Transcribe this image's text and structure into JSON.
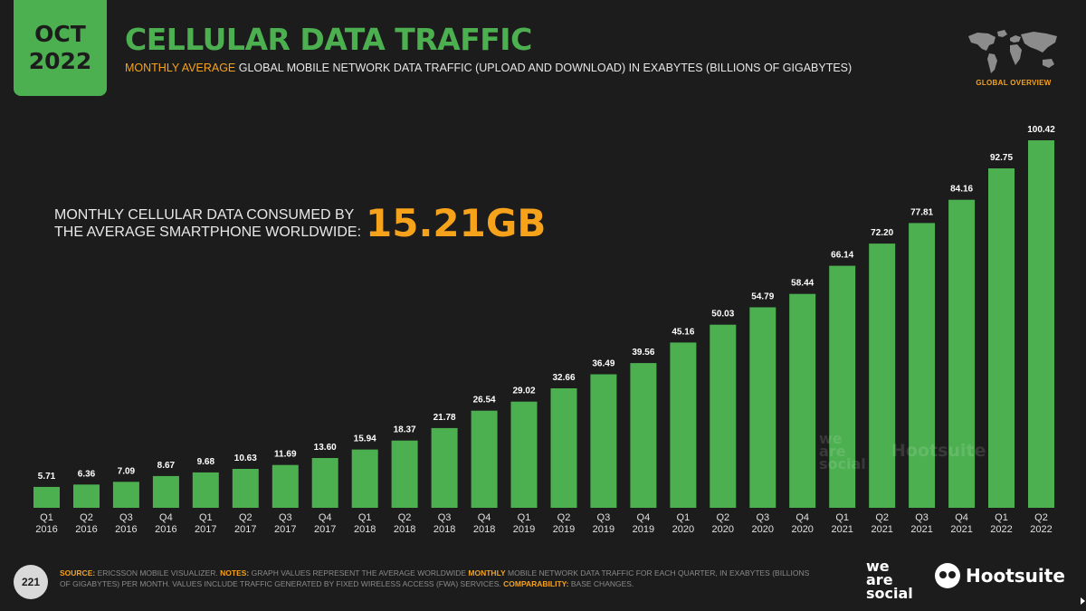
{
  "header": {
    "date_month": "OCT",
    "date_year": "2022",
    "title": "CELLULAR DATA TRAFFIC",
    "subtitle_highlight": "MONTHLY AVERAGE",
    "subtitle_rest": " GLOBAL MOBILE NETWORK DATA TRAFFIC (UPLOAD AND DOWNLOAD) IN EXABYTES (BILLIONS OF GIGABYTES)",
    "region_label": "GLOBAL OVERVIEW"
  },
  "callout": {
    "line1": "MONTHLY CELLULAR DATA CONSUMED BY",
    "line2": "THE AVERAGE SMARTPHONE WORLDWIDE:",
    "value": "15.21GB"
  },
  "watermark": {
    "we": "we",
    "are": "are",
    "social": "social",
    "brand": "Hootsuite"
  },
  "footer": {
    "page_number": "221",
    "source_label": "SOURCE:",
    "source_text": " ERICSSON MOBILE VISUALIZER. ",
    "notes_label": "NOTES:",
    "notes_text_1": " GRAPH VALUES REPRESENT THE AVERAGE WORLDWIDE ",
    "notes_highlight": "MONTHLY",
    "notes_text_2": " MOBILE NETWORK DATA TRAFFIC FOR EACH QUARTER, IN EXABYTES (BILLIONS OF GIGABYTES) PER MONTH. VALUES INCLUDE TRAFFIC GENERATED BY FIXED WIRELESS ACCESS (FWA) SERVICES. ",
    "comparability_label": "COMPARABILITY:",
    "comparability_text": " BASE CHANGES.",
    "logo_we": "we",
    "logo_are": "are",
    "logo_social": "social",
    "logo_brand": "Hootsuite"
  },
  "colors": {
    "bar": "#4caf50",
    "accent": "#f7a21b",
    "background": "#1c1c1c"
  },
  "chart_data": {
    "type": "bar",
    "categories": [
      [
        "Q1",
        "2016"
      ],
      [
        "Q2",
        "2016"
      ],
      [
        "Q3",
        "2016"
      ],
      [
        "Q4",
        "2016"
      ],
      [
        "Q1",
        "2017"
      ],
      [
        "Q2",
        "2017"
      ],
      [
        "Q3",
        "2017"
      ],
      [
        "Q4",
        "2017"
      ],
      [
        "Q1",
        "2018"
      ],
      [
        "Q2",
        "2018"
      ],
      [
        "Q3",
        "2018"
      ],
      [
        "Q4",
        "2018"
      ],
      [
        "Q1",
        "2019"
      ],
      [
        "Q2",
        "2019"
      ],
      [
        "Q3",
        "2019"
      ],
      [
        "Q4",
        "2019"
      ],
      [
        "Q1",
        "2020"
      ],
      [
        "Q2",
        "2020"
      ],
      [
        "Q3",
        "2020"
      ],
      [
        "Q4",
        "2020"
      ],
      [
        "Q1",
        "2021"
      ],
      [
        "Q2",
        "2021"
      ],
      [
        "Q3",
        "2021"
      ],
      [
        "Q4",
        "2021"
      ],
      [
        "Q1",
        "2022"
      ],
      [
        "Q2",
        "2022"
      ]
    ],
    "values": [
      5.71,
      6.36,
      7.09,
      8.67,
      9.68,
      10.63,
      11.69,
      13.6,
      15.94,
      18.37,
      21.78,
      26.54,
      29.02,
      32.66,
      36.49,
      39.56,
      45.16,
      50.03,
      54.79,
      58.44,
      66.14,
      72.2,
      77.81,
      84.16,
      92.75,
      100.42
    ],
    "value_labels": [
      "5.71",
      "6.36",
      "7.09",
      "8.67",
      "9.68",
      "10.63",
      "11.69",
      "13.60",
      "15.94",
      "18.37",
      "21.78",
      "26.54",
      "29.02",
      "32.66",
      "36.49",
      "39.56",
      "45.16",
      "50.03",
      "54.79",
      "58.44",
      "66.14",
      "72.20",
      "77.81",
      "84.16",
      "92.75",
      "100.42"
    ],
    "ylim": [
      0,
      100.42
    ],
    "grid": false,
    "legend": "none"
  }
}
